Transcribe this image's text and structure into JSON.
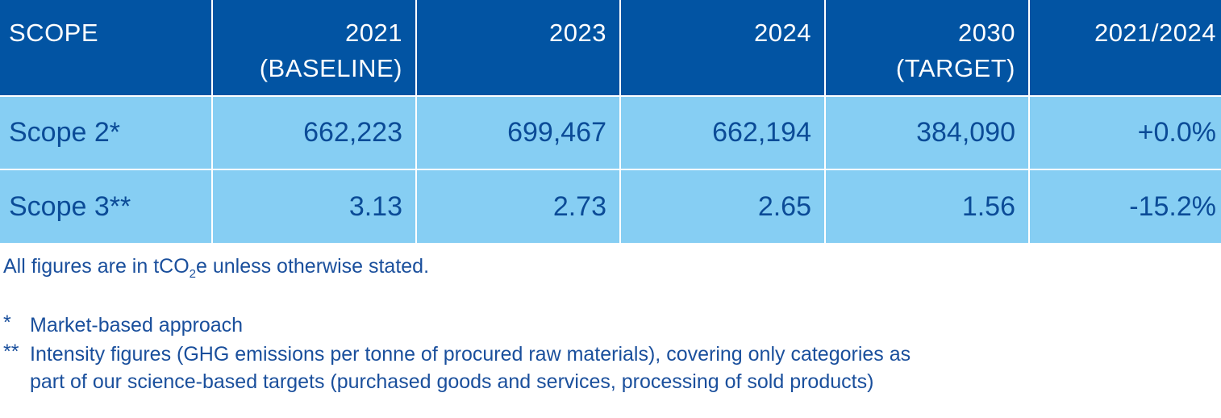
{
  "table": {
    "headers": [
      {
        "line1": "SCOPE",
        "line2": ""
      },
      {
        "line1": "2021",
        "line2": "(BASELINE)"
      },
      {
        "line1": "2023",
        "line2": ""
      },
      {
        "line1": "2024",
        "line2": ""
      },
      {
        "line1": "2030",
        "line2": "(TARGET)"
      },
      {
        "line1": "2021/2024",
        "line2": ""
      }
    ],
    "rows": [
      {
        "scope": "Scope 2*",
        "y2021": "662,223",
        "y2023": "699,467",
        "y2024": "662,194",
        "y2030": "384,090",
        "change": "+0.0%"
      },
      {
        "scope": "Scope 3**",
        "y2021": "3.13",
        "y2023": "2.73",
        "y2024": "2.65",
        "y2030": "1.56",
        "change": "-15.2%"
      }
    ]
  },
  "notes": {
    "unit_prefix": "All figures are in tCO",
    "unit_subscript": "2",
    "unit_suffix": "e unless otherwise stated.",
    "footnotes": [
      {
        "mark": "*",
        "text_line1": "Market-based approach",
        "text_line2": ""
      },
      {
        "mark": "**",
        "text_line1": "Intensity figures (GHG emissions per tonne of procured raw materials), covering only categories as",
        "text_line2": "part of our science-based targets (purchased goods and services, processing of sold products)"
      }
    ]
  },
  "colors": {
    "header_bg": "#0254a3",
    "row_bg": "#86cef3",
    "text": "#1a4f9c"
  }
}
